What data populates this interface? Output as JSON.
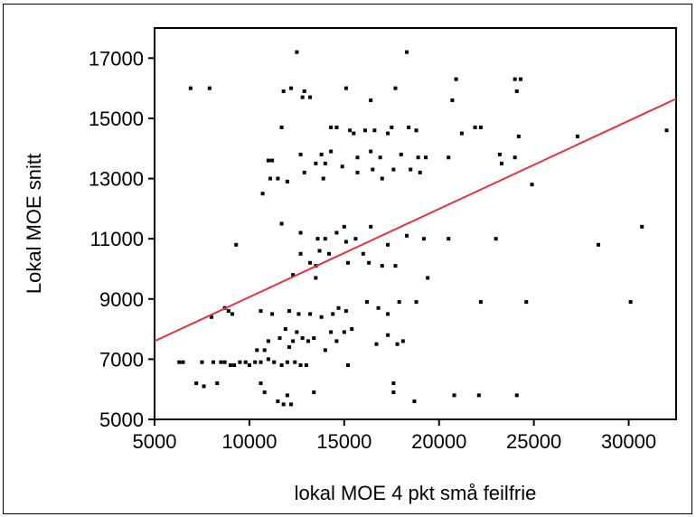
{
  "chart_data": {
    "type": "scatter",
    "title": "",
    "xlabel": "lokal MOE 4 pkt små feilfrie",
    "ylabel": "Lokal MOE snitt",
    "xlim": [
      5000,
      32500
    ],
    "ylim": [
      5000,
      18000
    ],
    "x_ticks": [
      "5000",
      "10000",
      "15000",
      "20000",
      "25000",
      "30000"
    ],
    "y_ticks": [
      "5000",
      "7000",
      "9000",
      "11000",
      "13000",
      "15000",
      "17000"
    ],
    "grid": false,
    "point_color": "#000000",
    "fit_line": {
      "color": "#e8303a",
      "x": [
        5000,
        32500
      ],
      "y": [
        7600,
        15650
      ]
    },
    "points": [
      [
        6900,
        16000
      ],
      [
        7900,
        16000
      ],
      [
        12500,
        17200
      ],
      [
        18300,
        17200
      ],
      [
        11800,
        15900
      ],
      [
        12200,
        16000
      ],
      [
        12900,
        15900
      ],
      [
        12800,
        15700
      ],
      [
        13200,
        15700
      ],
      [
        15100,
        16000
      ],
      [
        16400,
        15600
      ],
      [
        17700,
        16000
      ],
      [
        20700,
        15600
      ],
      [
        20900,
        16300
      ],
      [
        24000,
        16300
      ],
      [
        24300,
        16300
      ],
      [
        24100,
        15900
      ],
      [
        11700,
        14700
      ],
      [
        14300,
        14700
      ],
      [
        14600,
        14700
      ],
      [
        15300,
        14600
      ],
      [
        15500,
        14500
      ],
      [
        16100,
        14600
      ],
      [
        16600,
        14600
      ],
      [
        17300,
        14500
      ],
      [
        17500,
        14700
      ],
      [
        18400,
        14700
      ],
      [
        18800,
        14600
      ],
      [
        21200,
        14500
      ],
      [
        21900,
        14700
      ],
      [
        22200,
        14700
      ],
      [
        24200,
        14400
      ],
      [
        27300,
        14400
      ],
      [
        32000,
        14600
      ],
      [
        11000,
        13600
      ],
      [
        11200,
        13600
      ],
      [
        12700,
        13800
      ],
      [
        13800,
        13800
      ],
      [
        14300,
        13900
      ],
      [
        15700,
        13700
      ],
      [
        16400,
        13900
      ],
      [
        16900,
        13700
      ],
      [
        18000,
        13800
      ],
      [
        18900,
        13700
      ],
      [
        19300,
        13700
      ],
      [
        20500,
        13700
      ],
      [
        23200,
        13800
      ],
      [
        24000,
        13700
      ],
      [
        11100,
        13000
      ],
      [
        11500,
        13000
      ],
      [
        12900,
        13200
      ],
      [
        13500,
        13500
      ],
      [
        13900,
        13000
      ],
      [
        14000,
        13500
      ],
      [
        14900,
        13400
      ],
      [
        15700,
        13200
      ],
      [
        16500,
        13300
      ],
      [
        17000,
        13000
      ],
      [
        17600,
        13300
      ],
      [
        18500,
        13300
      ],
      [
        19000,
        13200
      ],
      [
        23300,
        13500
      ],
      [
        24900,
        12800
      ],
      [
        10700,
        12500
      ],
      [
        12000,
        12900
      ],
      [
        11700,
        11500
      ],
      [
        12700,
        11200
      ],
      [
        13600,
        11000
      ],
      [
        14000,
        11000
      ],
      [
        14600,
        11200
      ],
      [
        15000,
        11400
      ],
      [
        15600,
        11000
      ],
      [
        16400,
        11400
      ],
      [
        17300,
        10800
      ],
      [
        18300,
        11100
      ],
      [
        19200,
        11000
      ],
      [
        20500,
        11000
      ],
      [
        23000,
        11000
      ],
      [
        28400,
        10800
      ],
      [
        30700,
        11400
      ],
      [
        9300,
        10800
      ],
      [
        12700,
        10500
      ],
      [
        13200,
        10200
      ],
      [
        13700,
        10600
      ],
      [
        15200,
        10200
      ],
      [
        16000,
        10500
      ],
      [
        17000,
        10100
      ],
      [
        17700,
        10100
      ],
      [
        12300,
        9800
      ],
      [
        13500,
        10100
      ],
      [
        14200,
        10500
      ],
      [
        15100,
        10900
      ],
      [
        16300,
        10200
      ],
      [
        19400,
        9700
      ],
      [
        13500,
        9700
      ],
      [
        8700,
        8700
      ],
      [
        8900,
        8600
      ],
      [
        9100,
        8500
      ],
      [
        10600,
        8600
      ],
      [
        11200,
        8500
      ],
      [
        12100,
        8600
      ],
      [
        12600,
        8500
      ],
      [
        13200,
        8500
      ],
      [
        13800,
        8400
      ],
      [
        14400,
        8500
      ],
      [
        14700,
        8700
      ],
      [
        15100,
        8600
      ],
      [
        16200,
        8900
      ],
      [
        16800,
        8700
      ],
      [
        17300,
        8500
      ],
      [
        17900,
        8900
      ],
      [
        18800,
        8900
      ],
      [
        22200,
        8900
      ],
      [
        24600,
        8900
      ],
      [
        30100,
        8900
      ],
      [
        8000,
        8400
      ],
      [
        10400,
        7300
      ],
      [
        10800,
        7300
      ],
      [
        11000,
        7600
      ],
      [
        11600,
        7700
      ],
      [
        12100,
        7400
      ],
      [
        12500,
        7900
      ],
      [
        12800,
        7700
      ],
      [
        13100,
        7600
      ],
      [
        13400,
        7700
      ],
      [
        14300,
        7900
      ],
      [
        14600,
        7600
      ],
      [
        15000,
        7900
      ],
      [
        15400,
        8000
      ],
      [
        16700,
        7500
      ],
      [
        17300,
        7800
      ],
      [
        17800,
        7500
      ],
      [
        18100,
        7600
      ],
      [
        11900,
        8000
      ],
      [
        12300,
        7600
      ],
      [
        14000,
        7300
      ],
      [
        6300,
        6900
      ],
      [
        6500,
        6900
      ],
      [
        7500,
        6900
      ],
      [
        8100,
        6900
      ],
      [
        8500,
        6900
      ],
      [
        8700,
        6900
      ],
      [
        9200,
        6800
      ],
      [
        9500,
        6900
      ],
      [
        9800,
        6900
      ],
      [
        10000,
        6800
      ],
      [
        10300,
        6900
      ],
      [
        10600,
        6900
      ],
      [
        11000,
        7000
      ],
      [
        11300,
        6900
      ],
      [
        11700,
        6800
      ],
      [
        12000,
        6900
      ],
      [
        12400,
        6900
      ],
      [
        12700,
        6800
      ],
      [
        13000,
        6800
      ],
      [
        15200,
        6800
      ],
      [
        9000,
        6800
      ],
      [
        7200,
        6200
      ],
      [
        7600,
        6100
      ],
      [
        8300,
        6200
      ],
      [
        10600,
        6200
      ],
      [
        10800,
        5900
      ],
      [
        11500,
        5600
      ],
      [
        12000,
        5800
      ],
      [
        13400,
        5900
      ],
      [
        17600,
        5900
      ],
      [
        17600,
        6200
      ],
      [
        18700,
        5600
      ],
      [
        20800,
        5800
      ],
      [
        22100,
        5800
      ],
      [
        24100,
        5800
      ],
      [
        11800,
        5500
      ],
      [
        12200,
        5500
      ]
    ]
  }
}
